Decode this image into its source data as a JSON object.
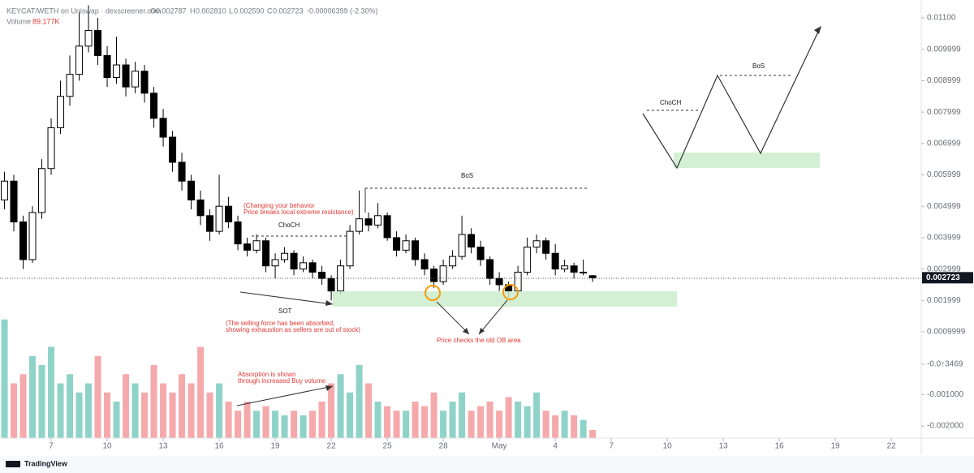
{
  "chart_data": {
    "type": "candlestick",
    "title": "KEYCAT/WETH on Uniswap · dexscreener.com",
    "ohlc": [
      {
        "label": "O",
        "value": "0.002787"
      },
      {
        "label": "H",
        "value": "0.002810"
      },
      {
        "label": "L",
        "value": "0.002590"
      },
      {
        "label": "C",
        "value": "0.002723"
      }
    ],
    "change": "-0.00006399 (-2.30%)",
    "volume_name": "Volume",
    "volume_label": "89.177K",
    "x": [
      4.5,
      5,
      5.5,
      6,
      6.5,
      7,
      7.5,
      8,
      8.5,
      9,
      9.5,
      10,
      10.5,
      11,
      11.5,
      12,
      12.5,
      13,
      13.5,
      14,
      14.5,
      15,
      15.5,
      16,
      16.5,
      17,
      17.5,
      18,
      18.5,
      19,
      19.5,
      20,
      20.5,
      21,
      21.5,
      22,
      22.5,
      23,
      23.5,
      24,
      24.5,
      25,
      25.5,
      26,
      26.5,
      27,
      27.5,
      28,
      28.5,
      29,
      29.5,
      30,
      30.5,
      31,
      31.5,
      32,
      32.5,
      33,
      33.5,
      34,
      34.5,
      35,
      35.5,
      36
    ],
    "open": [
      0.0052,
      0.0058,
      0.0045,
      0.0033,
      0.0048,
      0.0062,
      0.0075,
      0.0085,
      0.0092,
      0.0101,
      0.0106,
      0.0098,
      0.0091,
      0.0095,
      0.0088,
      0.0093,
      0.0086,
      0.0078,
      0.0072,
      0.0064,
      0.0058,
      0.0052,
      0.0047,
      0.0042,
      0.005,
      0.0045,
      0.0038,
      0.0036,
      0.0039,
      0.0031,
      0.0033,
      0.0035,
      0.003,
      0.0032,
      0.0029,
      0.0027,
      0.0023,
      0.0031,
      0.0042,
      0.0046,
      0.0044,
      0.0047,
      0.004,
      0.0036,
      0.0039,
      0.0033,
      0.003,
      0.0026,
      0.0031,
      0.0034,
      0.0041,
      0.0037,
      0.0033,
      0.0027,
      0.0025,
      0.0023,
      0.0029,
      0.0037,
      0.0039,
      0.0035,
      0.003,
      0.0031,
      0.0029,
      0.002787
    ],
    "high": [
      0.0061,
      0.006,
      0.0047,
      0.005,
      0.0065,
      0.0078,
      0.009,
      0.0098,
      0.0112,
      0.0114,
      0.011,
      0.0101,
      0.0104,
      0.0097,
      0.0096,
      0.0095,
      0.0088,
      0.0081,
      0.0074,
      0.0067,
      0.006,
      0.0055,
      0.0049,
      0.006,
      0.0053,
      0.0047,
      0.004,
      0.0041,
      0.004,
      0.0035,
      0.0037,
      0.0036,
      0.0034,
      0.0033,
      0.0031,
      0.0028,
      0.0033,
      0.0044,
      0.0055,
      0.0048,
      0.0051,
      0.0048,
      0.0042,
      0.0041,
      0.004,
      0.0035,
      0.0031,
      0.0033,
      0.0036,
      0.0047,
      0.0043,
      0.0039,
      0.0034,
      0.0029,
      0.0026,
      0.0031,
      0.004,
      0.0041,
      0.004,
      0.0038,
      0.0033,
      0.0032,
      0.0033,
      0.00281
    ],
    "low": [
      0.0049,
      0.0042,
      0.003,
      0.0032,
      0.0046,
      0.006,
      0.0073,
      0.0082,
      0.009,
      0.0099,
      0.0095,
      0.0088,
      0.0089,
      0.0085,
      0.0086,
      0.0083,
      0.0075,
      0.0069,
      0.0061,
      0.0055,
      0.0049,
      0.0044,
      0.0039,
      0.0041,
      0.0043,
      0.0036,
      0.0034,
      0.0035,
      0.0029,
      0.0027,
      0.0032,
      0.0028,
      0.0029,
      0.0027,
      0.0025,
      0.002,
      0.0022,
      0.003,
      0.0041,
      0.0042,
      0.0043,
      0.0039,
      0.0034,
      0.0035,
      0.0031,
      0.0028,
      0.0024,
      0.0025,
      0.003,
      0.0033,
      0.0035,
      0.0031,
      0.0025,
      0.0023,
      0.0021,
      0.0022,
      0.0028,
      0.0035,
      0.0033,
      0.0028,
      0.0029,
      0.0027,
      0.0028,
      0.00259
    ],
    "close": [
      0.0058,
      0.0045,
      0.0033,
      0.0048,
      0.0062,
      0.0075,
      0.0085,
      0.0092,
      0.0101,
      0.0106,
      0.0098,
      0.0091,
      0.0095,
      0.0088,
      0.0093,
      0.0086,
      0.0078,
      0.0072,
      0.0064,
      0.0058,
      0.0052,
      0.0047,
      0.0042,
      0.005,
      0.0045,
      0.0038,
      0.0036,
      0.0039,
      0.0031,
      0.0033,
      0.0035,
      0.003,
      0.0032,
      0.0029,
      0.0027,
      0.0023,
      0.0031,
      0.0042,
      0.0046,
      0.0044,
      0.0047,
      0.004,
      0.0036,
      0.0039,
      0.0033,
      0.003,
      0.0026,
      0.0031,
      0.0034,
      0.0041,
      0.0037,
      0.0033,
      0.0027,
      0.0025,
      0.0023,
      0.0029,
      0.0037,
      0.0039,
      0.0035,
      0.003,
      0.0031,
      0.0029,
      0.0029,
      0.002723
    ],
    "volume": [
      1300,
      600,
      700,
      900,
      800,
      1000,
      600,
      700,
      500,
      600,
      900,
      500,
      400,
      700,
      600,
      500,
      800,
      600,
      500,
      700,
      600,
      1000,
      500,
      600,
      400,
      300,
      400,
      300,
      350,
      300,
      250,
      300,
      250,
      300,
      400,
      600,
      700,
      500,
      800,
      600,
      400,
      350,
      300,
      300,
      400,
      350,
      500,
      300,
      400,
      500,
      300,
      350,
      400,
      300,
      450,
      400,
      350,
      500,
      300,
      250,
      300,
      250,
      200,
      89.177
    ],
    "up_color": "#ffffff",
    "down_color": "#000000",
    "candle_border": "#000000",
    "volume_up_color": "#8fd3c8",
    "volume_down_color": "#f5a9ab",
    "xlim": [
      4.26,
      53.6
    ],
    "ylim": [
      -0.002385,
      0.011568
    ],
    "vlim": [
      0,
      4800
    ],
    "xticks": [
      7,
      10,
      13,
      16,
      19,
      22,
      25,
      28,
      {
        "value": 31,
        "label": "May"
      },
      {
        "value": 34,
        "label": "4"
      },
      {
        "value": 37,
        "label": "7"
      },
      {
        "value": 40,
        "label": "10"
      },
      {
        "value": 43,
        "label": "13"
      },
      {
        "value": 46,
        "label": "16"
      },
      {
        "value": 49,
        "label": "19"
      },
      {
        "value": 52,
        "label": "22"
      }
    ],
    "yticks": [
      {
        "value": 0.011,
        "label": "0.01100"
      },
      0.009999,
      0.008999,
      0.007999,
      0.006999,
      0.005999,
      0.004999,
      0.003999,
      0.002999,
      0.001999,
      0.0009999,
      {
        "value": -3.469e-05,
        "label": "-0.0↑3469"
      },
      {
        "value": -0.001,
        "label": "-0.001000"
      },
      {
        "value": -0.002,
        "label": "-0.002000"
      }
    ],
    "annotations": [
      "(Changing your behavior",
      "Price breaks local extreme resistance)",
      "ChoCH",
      "BoS",
      "SOT",
      "(The selling force has been absorbed,",
      "showing exhaustion as sellers are out of stock)",
      "Price checks the old OB area",
      "Absorption is shown",
      "through increased Buy volume",
      "ChoCH",
      "BoS"
    ],
    "branding": "TradingView"
  }
}
